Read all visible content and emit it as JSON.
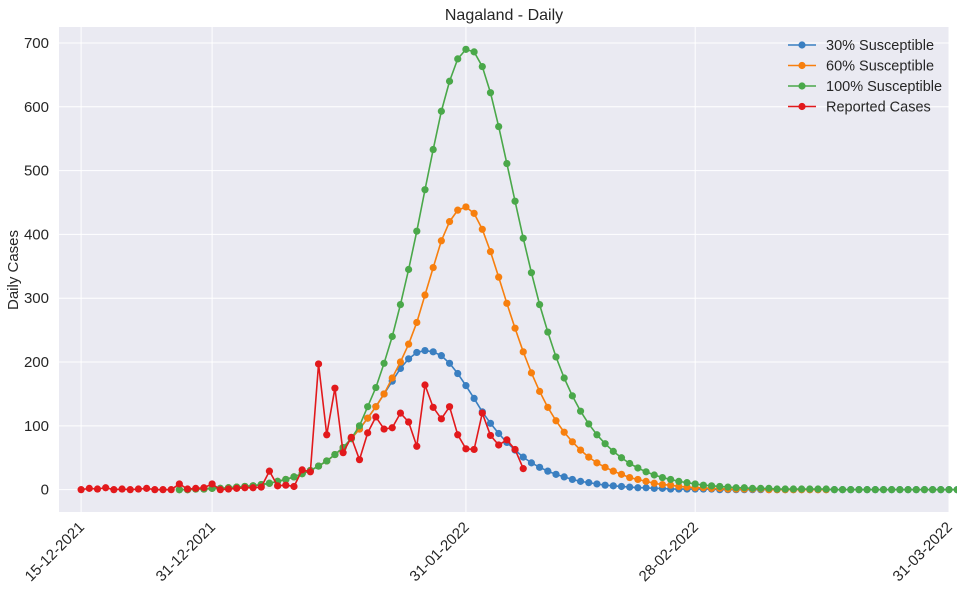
{
  "chart_data": {
    "type": "line",
    "title": "Nagaland - Daily",
    "xlabel": "",
    "ylabel": "Daily Cases",
    "ylim": [
      -35,
      725
    ],
    "yticks": [
      0,
      100,
      200,
      300,
      400,
      500,
      600,
      700
    ],
    "xlim": [
      "2021-12-12",
      "2022-04-01"
    ],
    "x_tick_labels": [
      "15-12-2021",
      "31-12-2021",
      "31-01-2022",
      "28-02-2022",
      "31-03-2022"
    ],
    "x_tick_dates": [
      "2021-12-15",
      "2021-12-31",
      "2022-01-31",
      "2022-02-28",
      "2022-03-31"
    ],
    "grid": true,
    "legend_position": "top-right",
    "series": [
      {
        "name": "30% Susceptible",
        "color": "#3a7fc1",
        "start_date": "2021-12-27",
        "values": [
          0,
          0,
          1,
          1,
          2,
          2,
          3,
          4,
          5,
          6,
          8,
          10,
          13,
          16,
          20,
          25,
          30,
          37,
          45,
          55,
          66,
          80,
          95,
          112,
          130,
          150,
          170,
          190,
          205,
          215,
          218,
          216,
          210,
          198,
          182,
          163,
          143,
          122,
          104,
          88,
          74,
          62,
          51,
          42,
          35,
          29,
          24,
          20,
          16,
          13,
          11,
          9,
          7,
          6,
          5,
          4,
          3,
          3,
          2,
          2,
          1,
          1,
          1,
          1,
          1,
          1,
          0,
          0,
          0,
          0,
          0,
          0,
          0,
          0,
          0,
          0,
          0,
          0,
          0,
          0,
          0,
          0,
          0,
          0,
          0,
          0,
          0,
          0,
          0,
          0,
          0,
          0,
          0,
          0,
          0,
          0
        ]
      },
      {
        "name": "60% Susceptible",
        "color": "#f77f0e",
        "start_date": "2021-12-27",
        "values": [
          0,
          0,
          1,
          1,
          2,
          2,
          3,
          4,
          5,
          6,
          8,
          10,
          13,
          16,
          20,
          25,
          30,
          37,
          45,
          55,
          66,
          80,
          95,
          112,
          130,
          150,
          175,
          200,
          228,
          262,
          305,
          348,
          390,
          420,
          438,
          443,
          433,
          408,
          373,
          333,
          292,
          253,
          216,
          183,
          154,
          129,
          108,
          90,
          75,
          62,
          51,
          42,
          35,
          29,
          24,
          19,
          16,
          13,
          10,
          8,
          7,
          5,
          4,
          3,
          3,
          2,
          2,
          1,
          1,
          1,
          1,
          1,
          0,
          0,
          0,
          0,
          0,
          0,
          0,
          0
        ]
      },
      {
        "name": "100% Susceptible",
        "color": "#4aa84a",
        "start_date": "2021-12-27",
        "values": [
          0,
          0,
          1,
          1,
          2,
          2,
          3,
          4,
          5,
          6,
          8,
          10,
          13,
          16,
          20,
          25,
          30,
          37,
          45,
          55,
          66,
          80,
          100,
          130,
          160,
          198,
          240,
          290,
          345,
          405,
          470,
          533,
          593,
          640,
          675,
          690,
          686,
          663,
          622,
          569,
          511,
          452,
          394,
          340,
          290,
          247,
          208,
          175,
          147,
          123,
          103,
          86,
          72,
          60,
          50,
          41,
          34,
          28,
          23,
          19,
          16,
          13,
          11,
          9,
          7,
          6,
          5,
          4,
          3,
          3,
          2,
          2,
          2,
          1,
          1,
          1,
          1,
          1,
          1,
          1,
          0,
          0,
          0,
          0,
          0,
          0,
          0,
          0,
          0,
          0,
          0,
          0,
          0,
          0,
          0,
          0
        ]
      },
      {
        "name": "Reported Cases",
        "color": "#e2191c",
        "start_date": "2021-12-15",
        "values": [
          0,
          2,
          1,
          3,
          0,
          1,
          0,
          1,
          2,
          0,
          0,
          0,
          9,
          1,
          2,
          3,
          9,
          0,
          1,
          2,
          3,
          3,
          4,
          29,
          6,
          7,
          5,
          31,
          28,
          197,
          86,
          159,
          58,
          82,
          47,
          89,
          114,
          95,
          97,
          120,
          106,
          68,
          164,
          129,
          111,
          130,
          86,
          64,
          63,
          120,
          85,
          70,
          78,
          63,
          33
        ]
      }
    ]
  }
}
